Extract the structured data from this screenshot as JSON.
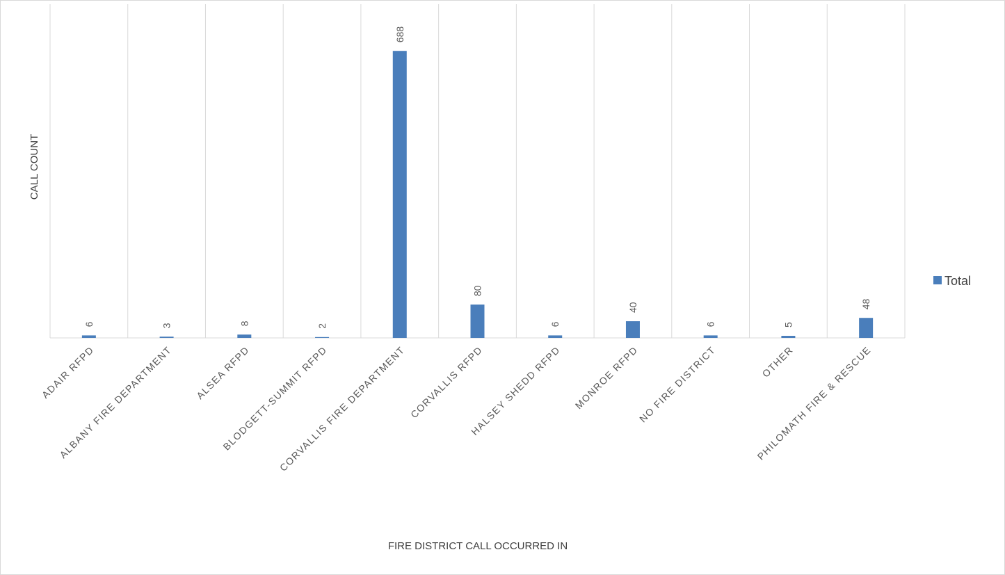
{
  "chart_data": {
    "type": "bar",
    "categories": [
      "ADAIR RFPD",
      "ALBANY FIRE DEPARTMENT",
      "ALSEA RFPD",
      "BLODGETT-SUMMIT RFPD",
      "CORVALLIS FIRE DEPARTMENT",
      "CORVALLIS RFPD",
      "HALSEY SHEDD RFPD",
      "MONROE RFPD",
      "NO FIRE DISTRICT",
      "OTHER",
      "PHILOMATH FIRE & RESCUE"
    ],
    "series": [
      {
        "name": "Total",
        "values": [
          6,
          3,
          8,
          2,
          688,
          80,
          6,
          40,
          6,
          5,
          48
        ]
      }
    ],
    "xlabel": "FIRE DISTRICT CALL OCCURRED IN",
    "ylabel": "CALL COUNT",
    "ylim": [
      0,
      800
    ],
    "grid": "vertical",
    "legend": "right",
    "bar_color": "#4a7ebb",
    "grid_color": "#d9d9d9"
  }
}
